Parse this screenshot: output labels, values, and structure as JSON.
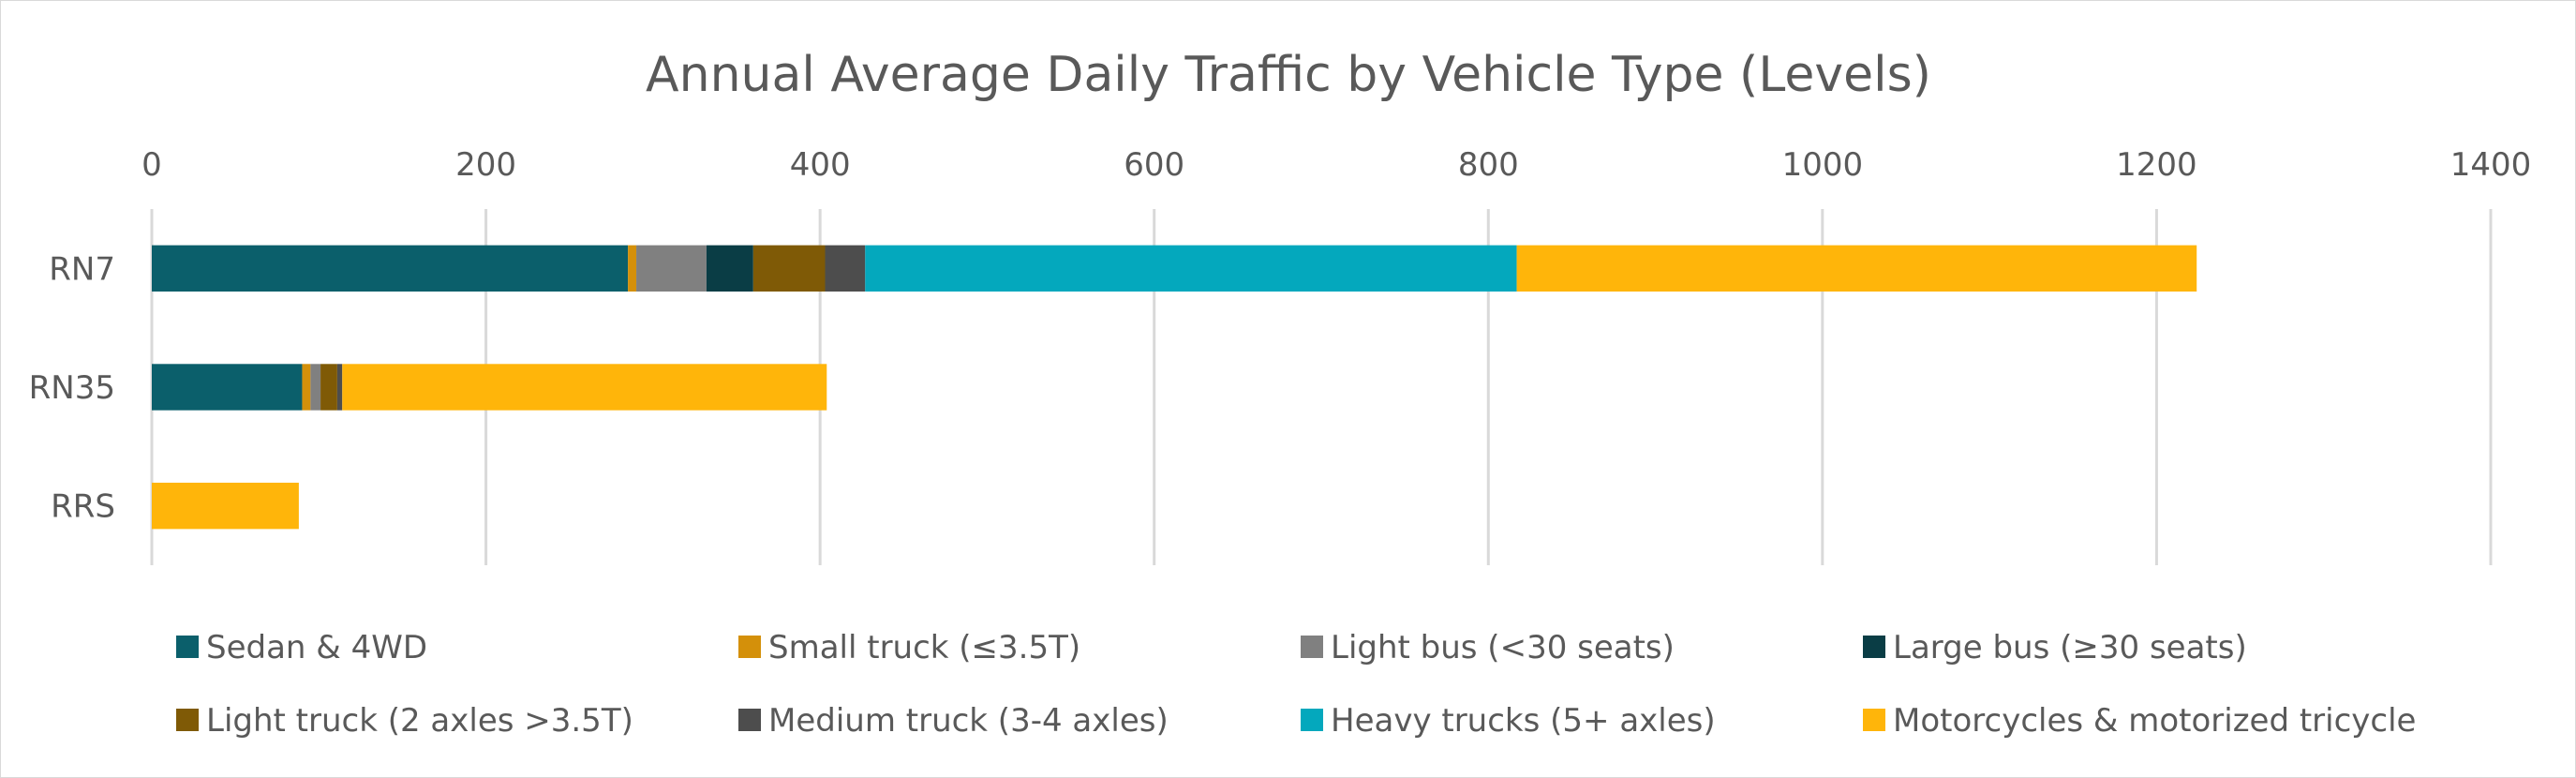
{
  "chart_data": {
    "type": "bar",
    "orientation": "horizontal",
    "stacked": true,
    "title": "Annual Average Daily Traffic by Vehicle Type (Levels)",
    "xlabel": "",
    "ylabel": "",
    "xlim": [
      0,
      1400
    ],
    "x_ticks": [
      "0",
      "200",
      "400",
      "600",
      "800",
      "1000",
      "1200",
      "1400"
    ],
    "x_axis_position": "top",
    "grid": true,
    "legend_position": "bottom",
    "categories": [
      "RN7",
      "RN35",
      "RRS"
    ],
    "series": [
      {
        "name": "Sedan & 4WD",
        "color": "#0b5f6b",
        "values": [
          285,
          90,
          0
        ]
      },
      {
        "name": "Small truck (≤3.5T)",
        "color": "#d4900a",
        "values": [
          5,
          5,
          0
        ]
      },
      {
        "name": "Light bus (<30 seats)",
        "color": "#808080",
        "values": [
          42,
          6,
          0
        ]
      },
      {
        "name": "Large bus (≥30 seats)",
        "color": "#0a3d45",
        "values": [
          28,
          0,
          0
        ]
      },
      {
        "name": "Light truck (2 axles >3.5T)",
        "color": "#7f5a06",
        "values": [
          43,
          10,
          0
        ]
      },
      {
        "name": "Medium truck (3-4 axles)",
        "color": "#4d4d4d",
        "values": [
          24,
          3,
          0
        ]
      },
      {
        "name": "Heavy trucks (5+ axles)",
        "color": "#04a8bd",
        "values": [
          390,
          0,
          0
        ]
      },
      {
        "name": "Motorcycles & motorized tricycle",
        "color": "#ffb50a",
        "values": [
          407,
          290,
          88
        ]
      }
    ]
  }
}
